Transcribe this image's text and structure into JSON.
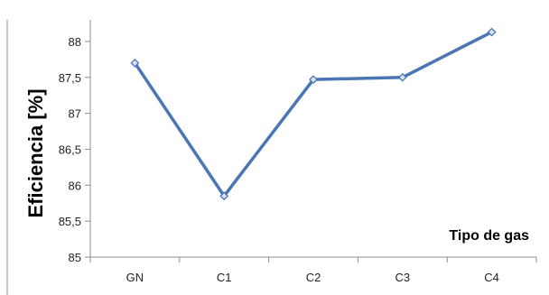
{
  "chart_data": {
    "type": "line",
    "categories": [
      "GN",
      "C1",
      "C2",
      "C3",
      "C4"
    ],
    "series": [
      {
        "values": [
          87.7,
          85.85,
          87.47,
          87.5,
          88.13
        ],
        "color": "#4a76b4"
      }
    ],
    "ylabel": "Eficiencia [%]",
    "xlabel": "Tipo de gas",
    "ylim": [
      85,
      88.3
    ],
    "yticks": [
      85,
      85.5,
      86,
      86.5,
      87,
      87.5,
      88
    ],
    "ytick_labels": [
      "85",
      "85,5",
      "86",
      "86,5",
      "87",
      "87,5",
      "88"
    ],
    "grid": false,
    "marker": "diamond",
    "colors": {
      "line": "#4a76b4",
      "marker_fill": "#dbe5f2",
      "axis": "#8c8c8c"
    }
  }
}
